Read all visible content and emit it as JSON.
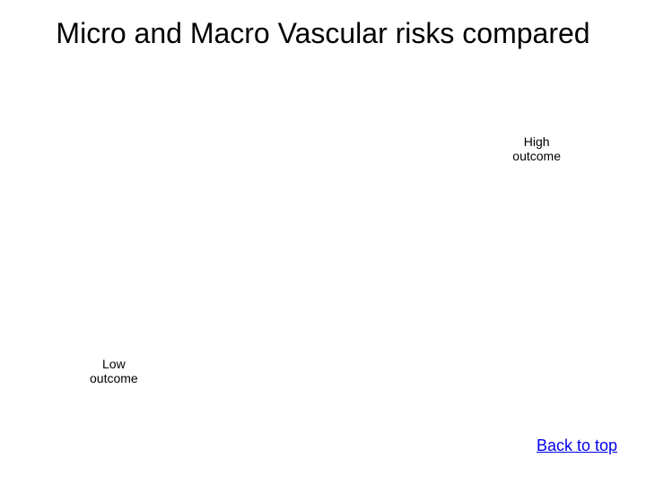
{
  "title": "Micro and Macro Vascular risks compared",
  "labels": {
    "high": "High\noutcome",
    "low": "Low\noutcome"
  },
  "link": {
    "back_to_top": "Back to top"
  },
  "colors": {
    "background": "#ffffff",
    "text": "#000000",
    "link": "#0000ee"
  },
  "typography": {
    "title_fontsize": 32,
    "label_fontsize": 14,
    "link_fontsize": 18
  }
}
